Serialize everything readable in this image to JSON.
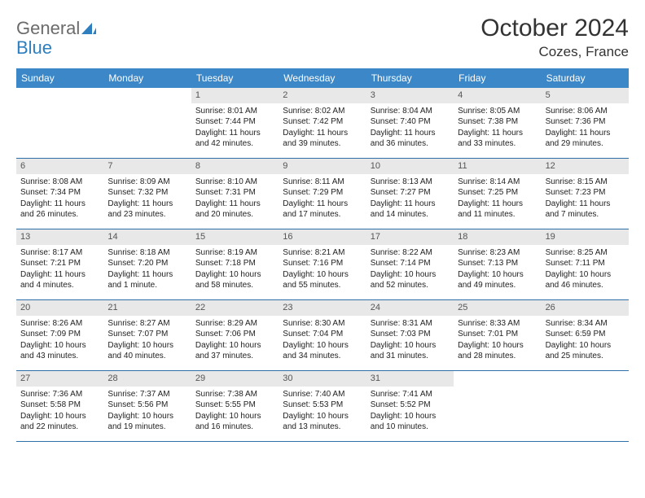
{
  "brand": {
    "main": "General",
    "accent": "Blue"
  },
  "title": "October 2024",
  "location": "Cozes, France",
  "colors": {
    "header_bg": "#3c87c7",
    "header_text": "#ffffff",
    "daynum_bg": "#e8e8e8",
    "daynum_text": "#555555",
    "border": "#2e6fa8",
    "logo_gray": "#6b6b6b",
    "logo_blue": "#2e7fbf"
  },
  "day_names": [
    "Sunday",
    "Monday",
    "Tuesday",
    "Wednesday",
    "Thursday",
    "Friday",
    "Saturday"
  ],
  "weeks": [
    [
      null,
      null,
      {
        "n": "1",
        "sr": "Sunrise: 8:01 AM",
        "ss": "Sunset: 7:44 PM",
        "dl": "Daylight: 11 hours and 42 minutes."
      },
      {
        "n": "2",
        "sr": "Sunrise: 8:02 AM",
        "ss": "Sunset: 7:42 PM",
        "dl": "Daylight: 11 hours and 39 minutes."
      },
      {
        "n": "3",
        "sr": "Sunrise: 8:04 AM",
        "ss": "Sunset: 7:40 PM",
        "dl": "Daylight: 11 hours and 36 minutes."
      },
      {
        "n": "4",
        "sr": "Sunrise: 8:05 AM",
        "ss": "Sunset: 7:38 PM",
        "dl": "Daylight: 11 hours and 33 minutes."
      },
      {
        "n": "5",
        "sr": "Sunrise: 8:06 AM",
        "ss": "Sunset: 7:36 PM",
        "dl": "Daylight: 11 hours and 29 minutes."
      }
    ],
    [
      {
        "n": "6",
        "sr": "Sunrise: 8:08 AM",
        "ss": "Sunset: 7:34 PM",
        "dl": "Daylight: 11 hours and 26 minutes."
      },
      {
        "n": "7",
        "sr": "Sunrise: 8:09 AM",
        "ss": "Sunset: 7:32 PM",
        "dl": "Daylight: 11 hours and 23 minutes."
      },
      {
        "n": "8",
        "sr": "Sunrise: 8:10 AM",
        "ss": "Sunset: 7:31 PM",
        "dl": "Daylight: 11 hours and 20 minutes."
      },
      {
        "n": "9",
        "sr": "Sunrise: 8:11 AM",
        "ss": "Sunset: 7:29 PM",
        "dl": "Daylight: 11 hours and 17 minutes."
      },
      {
        "n": "10",
        "sr": "Sunrise: 8:13 AM",
        "ss": "Sunset: 7:27 PM",
        "dl": "Daylight: 11 hours and 14 minutes."
      },
      {
        "n": "11",
        "sr": "Sunrise: 8:14 AM",
        "ss": "Sunset: 7:25 PM",
        "dl": "Daylight: 11 hours and 11 minutes."
      },
      {
        "n": "12",
        "sr": "Sunrise: 8:15 AM",
        "ss": "Sunset: 7:23 PM",
        "dl": "Daylight: 11 hours and 7 minutes."
      }
    ],
    [
      {
        "n": "13",
        "sr": "Sunrise: 8:17 AM",
        "ss": "Sunset: 7:21 PM",
        "dl": "Daylight: 11 hours and 4 minutes."
      },
      {
        "n": "14",
        "sr": "Sunrise: 8:18 AM",
        "ss": "Sunset: 7:20 PM",
        "dl": "Daylight: 11 hours and 1 minute."
      },
      {
        "n": "15",
        "sr": "Sunrise: 8:19 AM",
        "ss": "Sunset: 7:18 PM",
        "dl": "Daylight: 10 hours and 58 minutes."
      },
      {
        "n": "16",
        "sr": "Sunrise: 8:21 AM",
        "ss": "Sunset: 7:16 PM",
        "dl": "Daylight: 10 hours and 55 minutes."
      },
      {
        "n": "17",
        "sr": "Sunrise: 8:22 AM",
        "ss": "Sunset: 7:14 PM",
        "dl": "Daylight: 10 hours and 52 minutes."
      },
      {
        "n": "18",
        "sr": "Sunrise: 8:23 AM",
        "ss": "Sunset: 7:13 PM",
        "dl": "Daylight: 10 hours and 49 minutes."
      },
      {
        "n": "19",
        "sr": "Sunrise: 8:25 AM",
        "ss": "Sunset: 7:11 PM",
        "dl": "Daylight: 10 hours and 46 minutes."
      }
    ],
    [
      {
        "n": "20",
        "sr": "Sunrise: 8:26 AM",
        "ss": "Sunset: 7:09 PM",
        "dl": "Daylight: 10 hours and 43 minutes."
      },
      {
        "n": "21",
        "sr": "Sunrise: 8:27 AM",
        "ss": "Sunset: 7:07 PM",
        "dl": "Daylight: 10 hours and 40 minutes."
      },
      {
        "n": "22",
        "sr": "Sunrise: 8:29 AM",
        "ss": "Sunset: 7:06 PM",
        "dl": "Daylight: 10 hours and 37 minutes."
      },
      {
        "n": "23",
        "sr": "Sunrise: 8:30 AM",
        "ss": "Sunset: 7:04 PM",
        "dl": "Daylight: 10 hours and 34 minutes."
      },
      {
        "n": "24",
        "sr": "Sunrise: 8:31 AM",
        "ss": "Sunset: 7:03 PM",
        "dl": "Daylight: 10 hours and 31 minutes."
      },
      {
        "n": "25",
        "sr": "Sunrise: 8:33 AM",
        "ss": "Sunset: 7:01 PM",
        "dl": "Daylight: 10 hours and 28 minutes."
      },
      {
        "n": "26",
        "sr": "Sunrise: 8:34 AM",
        "ss": "Sunset: 6:59 PM",
        "dl": "Daylight: 10 hours and 25 minutes."
      }
    ],
    [
      {
        "n": "27",
        "sr": "Sunrise: 7:36 AM",
        "ss": "Sunset: 5:58 PM",
        "dl": "Daylight: 10 hours and 22 minutes."
      },
      {
        "n": "28",
        "sr": "Sunrise: 7:37 AM",
        "ss": "Sunset: 5:56 PM",
        "dl": "Daylight: 10 hours and 19 minutes."
      },
      {
        "n": "29",
        "sr": "Sunrise: 7:38 AM",
        "ss": "Sunset: 5:55 PM",
        "dl": "Daylight: 10 hours and 16 minutes."
      },
      {
        "n": "30",
        "sr": "Sunrise: 7:40 AM",
        "ss": "Sunset: 5:53 PM",
        "dl": "Daylight: 10 hours and 13 minutes."
      },
      {
        "n": "31",
        "sr": "Sunrise: 7:41 AM",
        "ss": "Sunset: 5:52 PM",
        "dl": "Daylight: 10 hours and 10 minutes."
      },
      null,
      null
    ]
  ]
}
